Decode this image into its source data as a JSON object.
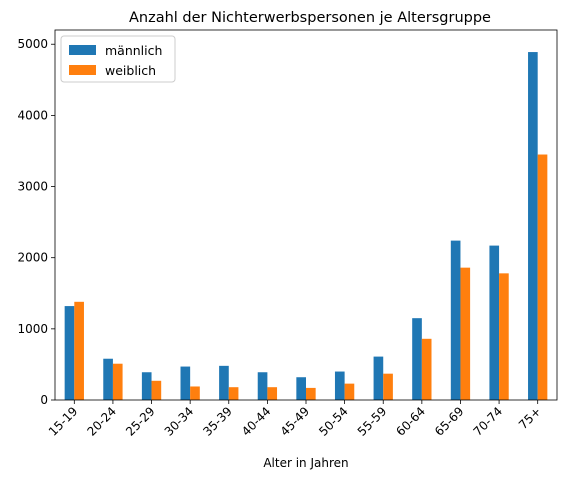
{
  "chart_data": {
    "type": "bar",
    "title": "Anzahl der Nichterwerbspersonen je Altersgruppe",
    "xlabel": "Alter in Jahren",
    "ylabel": "",
    "categories": [
      "15-19",
      "20-24",
      "25-29",
      "30-34",
      "35-39",
      "40-44",
      "45-49",
      "50-54",
      "55-59",
      "60-64",
      "65-69",
      "70-74",
      "75+"
    ],
    "series": [
      {
        "name": "männlich",
        "color": "#1f77b4",
        "values": [
          1320,
          580,
          390,
          470,
          480,
          390,
          320,
          400,
          610,
          1150,
          2240,
          2170,
          4890
        ]
      },
      {
        "name": "weiblich",
        "color": "#ff7f0e",
        "values": [
          1380,
          510,
          270,
          190,
          180,
          180,
          170,
          230,
          370,
          860,
          1860,
          1780,
          3450
        ]
      }
    ],
    "ylim": [
      0,
      5200
    ],
    "yticks": [
      0,
      1000,
      2000,
      3000,
      4000,
      5000
    ],
    "grid": false,
    "legend_position": "top-left"
  }
}
